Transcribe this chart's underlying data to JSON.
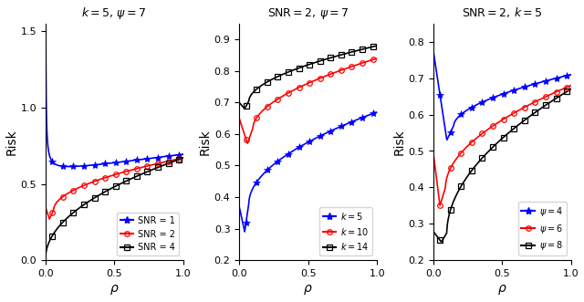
{
  "titles": [
    "$k = 5, \\, \\psi = 7$",
    "$\\mathrm{SNR} = 2, \\, \\psi = 7$",
    "$\\mathrm{SNR} = 2, \\, k = 5$"
  ],
  "xlabels": [
    "$\\rho$",
    "$\\rho$",
    "$\\rho$"
  ],
  "ylabels": [
    "Risk",
    "Risk",
    "Risk"
  ],
  "panel1": {
    "ylim": [
      0,
      1.55
    ],
    "yticks": [
      0,
      0.5,
      1.0,
      1.5
    ],
    "xticks": [
      0,
      0.5,
      1
    ]
  },
  "panel2": {
    "ylim": [
      0.2,
      0.95
    ],
    "yticks": [
      0.2,
      0.3,
      0.4,
      0.5,
      0.6,
      0.7,
      0.8,
      0.9
    ],
    "xticks": [
      0,
      0.5,
      1
    ]
  },
  "panel3": {
    "ylim": [
      0.2,
      0.85
    ],
    "yticks": [
      0.2,
      0.3,
      0.4,
      0.5,
      0.6,
      0.7,
      0.8
    ],
    "xticks": [
      0,
      0.5,
      1
    ]
  }
}
